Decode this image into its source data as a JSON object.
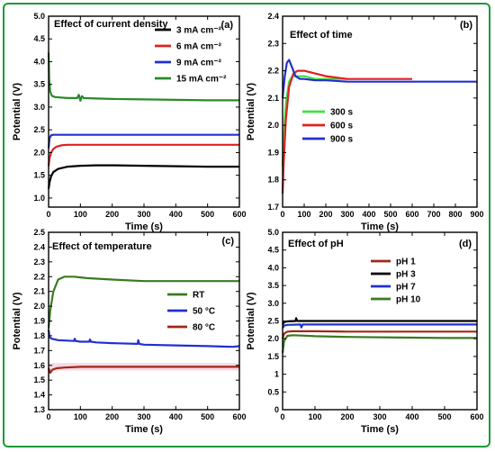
{
  "chart_data": [
    {
      "id": "a",
      "type": "line",
      "panel_label": "(a)",
      "title": "Effect of current density",
      "xlabel": "Time (s)",
      "ylabel": "Potential (V)",
      "xlim": [
        0,
        600
      ],
      "ylim": [
        0.8,
        5.0
      ],
      "xticks": [
        0,
        100,
        200,
        300,
        400,
        500,
        600
      ],
      "yticks": [
        1.0,
        1.5,
        2.0,
        2.5,
        3.0,
        3.5,
        4.0,
        4.5,
        5.0
      ],
      "ytick_labels": [
        "1.0",
        "1.5",
        "2.0",
        "2.5",
        "3.0",
        "3.5",
        "4.0",
        "4.5",
        "5.0"
      ],
      "legend_position": "top-right",
      "series": [
        {
          "name": "3 mA cm⁻²",
          "color": "#000000",
          "x": [
            0,
            3,
            8,
            15,
            30,
            60,
            100,
            150,
            200,
            300,
            400,
            500,
            600
          ],
          "y": [
            1.2,
            1.35,
            1.48,
            1.57,
            1.64,
            1.69,
            1.71,
            1.72,
            1.72,
            1.71,
            1.7,
            1.69,
            1.69
          ]
        },
        {
          "name": "6 mA cm⁻²",
          "color": "#e02020",
          "x": [
            0,
            3,
            8,
            15,
            25,
            40,
            60,
            100,
            200,
            300,
            400,
            500,
            600
          ],
          "y": [
            1.7,
            1.88,
            2.0,
            2.08,
            2.13,
            2.16,
            2.17,
            2.17,
            2.17,
            2.17,
            2.17,
            2.17,
            2.17
          ]
        },
        {
          "name": "9 mA cm⁻²",
          "color": "#2030d0",
          "x": [
            0,
            3,
            8,
            15,
            30,
            60,
            100,
            200,
            300,
            400,
            500,
            600
          ],
          "y": [
            2.1,
            2.32,
            2.38,
            2.39,
            2.39,
            2.39,
            2.39,
            2.39,
            2.39,
            2.39,
            2.39,
            2.39
          ]
        },
        {
          "name": "15 mA cm⁻²",
          "color": "#2a8a2a",
          "x": [
            0,
            2,
            5,
            10,
            20,
            40,
            60,
            90,
            95,
            100,
            105,
            110,
            150,
            200,
            300,
            400,
            500,
            600
          ],
          "y": [
            4.2,
            3.6,
            3.35,
            3.25,
            3.22,
            3.21,
            3.2,
            3.2,
            3.27,
            3.14,
            3.24,
            3.2,
            3.19,
            3.18,
            3.17,
            3.16,
            3.15,
            3.15
          ]
        }
      ]
    },
    {
      "id": "b",
      "type": "line",
      "panel_label": "(b)",
      "title": "Effect of time",
      "xlabel": "Time (s)",
      "ylabel": "Potential (V)",
      "xlim": [
        0,
        900
      ],
      "ylim": [
        1.7,
        2.4
      ],
      "xticks": [
        0,
        100,
        200,
        300,
        400,
        500,
        600,
        700,
        800,
        900
      ],
      "yticks": [
        1.7,
        1.8,
        1.9,
        2.0,
        2.1,
        2.2,
        2.3,
        2.4
      ],
      "ytick_labels": [
        "1.7",
        "1.8",
        "1.9",
        "2.0",
        "2.1",
        "2.2",
        "2.3",
        "2.4"
      ],
      "legend_position": "center-left",
      "series": [
        {
          "name": "300 s",
          "color": "#40e040",
          "x": [
            0,
            5,
            15,
            30,
            45,
            60,
            100,
            150,
            200,
            250,
            300
          ],
          "y": [
            1.85,
            1.95,
            2.08,
            2.16,
            2.18,
            2.18,
            2.18,
            2.17,
            2.17,
            2.17,
            2.17
          ]
        },
        {
          "name": "600 s",
          "color": "#e02020",
          "x": [
            0,
            5,
            15,
            30,
            50,
            70,
            100,
            150,
            200,
            300,
            400,
            500,
            600
          ],
          "y": [
            1.75,
            1.86,
            2.02,
            2.14,
            2.19,
            2.2,
            2.2,
            2.19,
            2.18,
            2.17,
            2.17,
            2.17,
            2.17
          ]
        },
        {
          "name": "900 s",
          "color": "#2030d0",
          "x": [
            0,
            10,
            20,
            30,
            45,
            60,
            80,
            100,
            150,
            200,
            300,
            400,
            500,
            600,
            700,
            800,
            900
          ],
          "y": [
            2.1,
            2.18,
            2.23,
            2.24,
            2.21,
            2.18,
            2.17,
            2.17,
            2.165,
            2.165,
            2.16,
            2.16,
            2.16,
            2.16,
            2.16,
            2.16,
            2.16
          ]
        }
      ]
    },
    {
      "id": "c",
      "type": "line",
      "panel_label": "(c)",
      "title": "Effect of temperature",
      "xlabel": "Time (s)",
      "ylabel": "Potential (V)",
      "xlim": [
        0,
        600
      ],
      "ylim": [
        1.3,
        2.5
      ],
      "xticks": [
        0,
        100,
        200,
        300,
        400,
        500,
        600
      ],
      "yticks": [
        1.3,
        1.4,
        1.5,
        1.6,
        1.7,
        1.8,
        1.9,
        2.0,
        2.1,
        2.2,
        2.3,
        2.4,
        2.5
      ],
      "ytick_labels": [
        "1.3",
        "1.4",
        "1.5",
        "1.6",
        "1.7",
        "1.8",
        "1.9",
        "2.0",
        "2.1",
        "2.2",
        "2.3",
        "2.4",
        "2.5"
      ],
      "legend_position": "right",
      "series": [
        {
          "name": "RT",
          "color": "#3a7a20",
          "x": [
            0,
            5,
            15,
            30,
            50,
            80,
            120,
            200,
            300,
            400,
            500,
            600
          ],
          "y": [
            1.85,
            1.97,
            2.1,
            2.18,
            2.2,
            2.2,
            2.19,
            2.18,
            2.17,
            2.17,
            2.17,
            2.17
          ]
        },
        {
          "name": "50 °C",
          "color": "#2030d0",
          "x": [
            0,
            3,
            10,
            30,
            80,
            82,
            85,
            100,
            128,
            130,
            133,
            150,
            200,
            280,
            282,
            285,
            300,
            400,
            500,
            580,
            600
          ],
          "y": [
            1.84,
            1.79,
            1.78,
            1.77,
            1.765,
            1.78,
            1.765,
            1.76,
            1.76,
            1.775,
            1.76,
            1.755,
            1.75,
            1.745,
            1.77,
            1.745,
            1.74,
            1.735,
            1.73,
            1.725,
            1.73
          ]
        },
        {
          "name": "80 °C",
          "color": "#a02818",
          "x": [
            0,
            5,
            12,
            25,
            50,
            100,
            200,
            300,
            400,
            500,
            600
          ],
          "y": [
            1.58,
            1.55,
            1.57,
            1.58,
            1.585,
            1.59,
            1.59,
            1.59,
            1.59,
            1.59,
            1.59
          ]
        }
      ]
    },
    {
      "id": "d",
      "type": "line",
      "panel_label": "(d)",
      "title": "Effect of pH",
      "xlabel": "Time (s)",
      "ylabel": "Potential (V)",
      "xlim": [
        0,
        600
      ],
      "ylim": [
        0.0,
        5.0
      ],
      "xticks": [
        0,
        100,
        200,
        300,
        400,
        500,
        600
      ],
      "yticks": [
        0.0,
        0.5,
        1.0,
        1.5,
        2.0,
        2.5,
        3.0,
        3.5,
        4.0,
        4.5,
        5.0
      ],
      "ytick_labels": [
        "0",
        "0.5",
        "1",
        "1.5",
        "2.0",
        "2.5",
        "3.0",
        "3.5",
        "4.0",
        "4.5",
        "5.0"
      ],
      "legend_position": "top-right",
      "series": [
        {
          "name": "pH 1",
          "color": "#a02818",
          "x": [
            0,
            5,
            15,
            30,
            100,
            200,
            300,
            400,
            500,
            600
          ],
          "y": [
            2.0,
            2.15,
            2.2,
            2.21,
            2.21,
            2.2,
            2.2,
            2.2,
            2.2,
            2.2
          ]
        },
        {
          "name": "pH 3",
          "color": "#000000",
          "x": [
            0,
            5,
            15,
            40,
            42,
            45,
            100,
            200,
            300,
            400,
            500,
            600
          ],
          "y": [
            2.4,
            2.47,
            2.49,
            2.5,
            2.58,
            2.5,
            2.5,
            2.5,
            2.5,
            2.5,
            2.5,
            2.5
          ]
        },
        {
          "name": "pH 7",
          "color": "#2030d0",
          "x": [
            0,
            5,
            15,
            55,
            58,
            62,
            100,
            200,
            300,
            400,
            500,
            600
          ],
          "y": [
            2.3,
            2.37,
            2.39,
            2.4,
            2.32,
            2.4,
            2.4,
            2.4,
            2.4,
            2.4,
            2.4,
            2.4
          ]
        },
        {
          "name": "pH 10",
          "color": "#3a7a20",
          "x": [
            0,
            5,
            15,
            30,
            60,
            100,
            200,
            300,
            400,
            500,
            600
          ],
          "y": [
            1.6,
            1.95,
            2.08,
            2.1,
            2.09,
            2.07,
            2.05,
            2.04,
            2.03,
            2.02,
            2.02
          ]
        }
      ]
    }
  ]
}
